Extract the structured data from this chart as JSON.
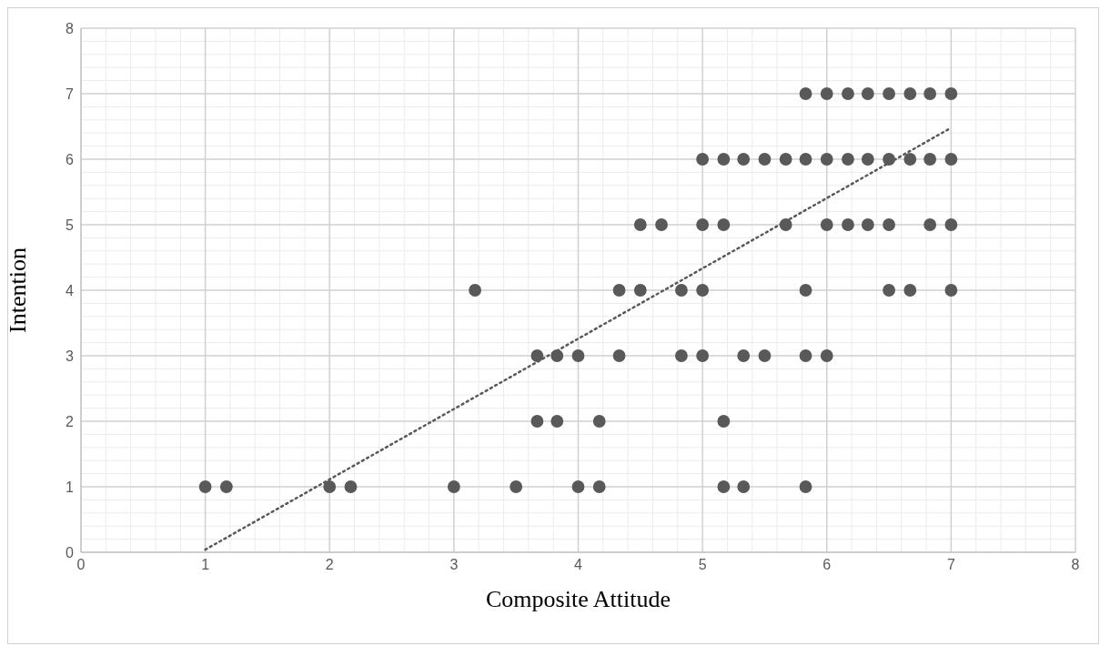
{
  "chart_data": {
    "type": "scatter",
    "xlabel": "Composite Attitude",
    "ylabel": "Intention",
    "xlim": [
      0,
      8
    ],
    "ylim": [
      0,
      8
    ],
    "xticks": [
      0,
      1,
      2,
      3,
      4,
      5,
      6,
      7,
      8
    ],
    "yticks": [
      0,
      1,
      2,
      3,
      4,
      5,
      6,
      7,
      8
    ],
    "grid": true,
    "marker": "circle",
    "series": [
      {
        "color": "#595959",
        "x": [
          1,
          1.17,
          2,
          2.17,
          3,
          3.5,
          4,
          4.17,
          5.17,
          5.33,
          5.83,
          3.67,
          3.83,
          4.17,
          5.17,
          3.67,
          3.83,
          4,
          4.33,
          4.83,
          5,
          5.33,
          5.5,
          5.83,
          6,
          3.17,
          4.33,
          4.5,
          4.83,
          5,
          5.83,
          6.5,
          6.67,
          7,
          4.5,
          4.67,
          5,
          5.17,
          5.67,
          6,
          6.17,
          6.33,
          6.5,
          6.83,
          7,
          5,
          5.17,
          5.33,
          5.5,
          5.67,
          5.83,
          6,
          6.17,
          6.33,
          6.5,
          6.67,
          6.83,
          7,
          5.83,
          6,
          6.17,
          6.33,
          6.5,
          6.67,
          6.83,
          7
        ],
        "values": [
          1,
          1,
          1,
          1,
          1,
          1,
          1,
          1,
          1,
          1,
          1,
          2,
          2,
          2,
          2,
          3,
          3,
          3,
          3,
          3,
          3,
          3,
          3,
          3,
          3,
          4,
          4,
          4,
          4,
          4,
          4,
          4,
          4,
          4,
          5,
          5,
          5,
          5,
          5,
          5,
          5,
          5,
          5,
          5,
          5,
          6,
          6,
          6,
          6,
          6,
          6,
          6,
          6,
          6,
          6,
          6,
          6,
          6,
          7,
          7,
          7,
          7,
          7,
          7,
          7,
          7
        ]
      },
      {
        "type": "line",
        "color": "#595959",
        "line_style": "dotted",
        "marker": "none",
        "x": [
          1,
          7
        ],
        "values": [
          0.04,
          6.48
        ]
      }
    ]
  }
}
